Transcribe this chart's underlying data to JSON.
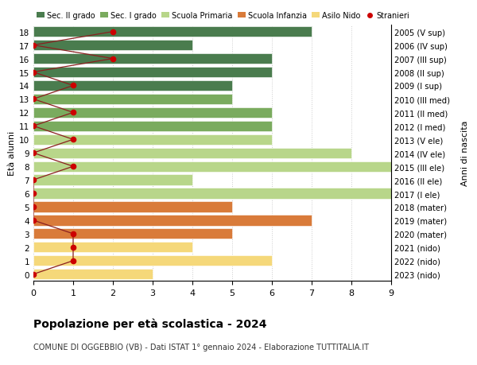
{
  "ages": [
    18,
    17,
    16,
    15,
    14,
    13,
    12,
    11,
    10,
    9,
    8,
    7,
    6,
    5,
    4,
    3,
    2,
    1,
    0
  ],
  "years": [
    "2005 (V sup)",
    "2006 (IV sup)",
    "2007 (III sup)",
    "2008 (II sup)",
    "2009 (I sup)",
    "2010 (III med)",
    "2011 (II med)",
    "2012 (I med)",
    "2013 (V ele)",
    "2014 (IV ele)",
    "2015 (III ele)",
    "2016 (II ele)",
    "2017 (I ele)",
    "2018 (mater)",
    "2019 (mater)",
    "2020 (mater)",
    "2021 (nido)",
    "2022 (nido)",
    "2023 (nido)"
  ],
  "bar_values": [
    7,
    4,
    6,
    6,
    5,
    5,
    6,
    6,
    6,
    8,
    9,
    4,
    9,
    5,
    7,
    5,
    4,
    6,
    3
  ],
  "bar_colors": [
    "#4a7c4e",
    "#4a7c4e",
    "#4a7c4e",
    "#4a7c4e",
    "#4a7c4e",
    "#7aab5e",
    "#7aab5e",
    "#7aab5e",
    "#b8d68a",
    "#b8d68a",
    "#b8d68a",
    "#b8d68a",
    "#b8d68a",
    "#d97b3a",
    "#d97b3a",
    "#d97b3a",
    "#f5d87a",
    "#f5d87a",
    "#f5d87a"
  ],
  "stranieri_x": [
    2,
    0,
    2,
    0,
    1,
    0,
    1,
    0,
    1,
    0,
    1,
    0,
    0,
    0,
    0,
    1,
    1,
    1,
    0
  ],
  "legend_labels": [
    "Sec. II grado",
    "Sec. I grado",
    "Scuola Primaria",
    "Scuola Infanzia",
    "Asilo Nido",
    "Stranieri"
  ],
  "legend_colors": [
    "#4a7c4e",
    "#7aab5e",
    "#b8d68a",
    "#d97b3a",
    "#f5d87a",
    "#cc0000"
  ],
  "title": "Popolazione per età scolastica - 2024",
  "subtitle": "COMUNE DI OGGEBBIO (VB) - Dati ISTAT 1° gennaio 2024 - Elaborazione TUTTITALIA.IT",
  "ylabel_left": "Età alunni",
  "ylabel_right": "Anni di nascita",
  "xlim": [
    0,
    9
  ],
  "background_color": "#ffffff",
  "grid_color": "#cccccc",
  "bar_height": 0.78,
  "stranieri_line_color": "#8b2020",
  "stranieri_dot_color": "#cc0000"
}
